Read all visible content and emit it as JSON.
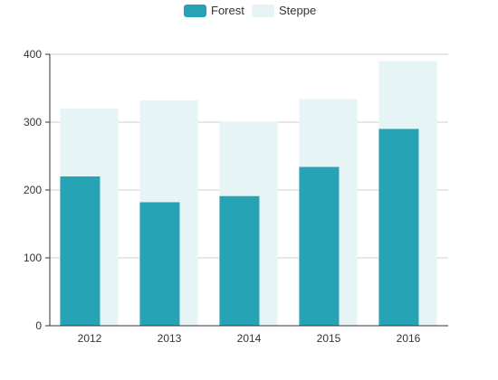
{
  "chart_data": {
    "type": "bar",
    "categories": [
      "2012",
      "2013",
      "2014",
      "2015",
      "2016"
    ],
    "series": [
      {
        "name": "Forest",
        "values": [
          220,
          182,
          191,
          234,
          290
        ],
        "color": "#26a3b5"
      },
      {
        "name": "Steppe",
        "values": [
          320,
          332,
          301,
          334,
          390
        ],
        "color": "#e6f4f6"
      }
    ],
    "ylim": [
      0,
      400
    ],
    "yticks": [
      0,
      100,
      200,
      300,
      400
    ],
    "grid": true,
    "legend_position": "top-center",
    "title": "",
    "xlabel": "",
    "ylabel": ""
  }
}
